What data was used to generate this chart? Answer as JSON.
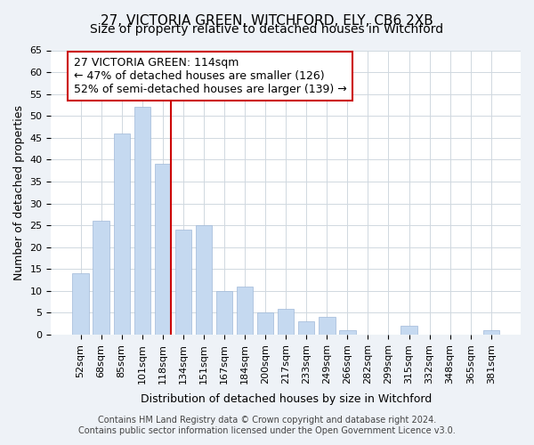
{
  "title": "27, VICTORIA GREEN, WITCHFORD, ELY, CB6 2XB",
  "subtitle": "Size of property relative to detached houses in Witchford",
  "xlabel": "Distribution of detached houses by size in Witchford",
  "ylabel": "Number of detached properties",
  "categories": [
    "52sqm",
    "68sqm",
    "85sqm",
    "101sqm",
    "118sqm",
    "134sqm",
    "151sqm",
    "167sqm",
    "184sqm",
    "200sqm",
    "217sqm",
    "233sqm",
    "249sqm",
    "266sqm",
    "282sqm",
    "299sqm",
    "315sqm",
    "332sqm",
    "348sqm",
    "365sqm",
    "381sqm"
  ],
  "values": [
    14,
    26,
    46,
    52,
    39,
    24,
    25,
    10,
    11,
    5,
    6,
    3,
    4,
    1,
    0,
    0,
    2,
    0,
    0,
    0,
    1
  ],
  "bar_color": "#c5d9f0",
  "bar_edge_color": "#a0b8d8",
  "vline_x": 4.4,
  "vline_color": "#cc0000",
  "ylim": [
    0,
    65
  ],
  "yticks": [
    0,
    5,
    10,
    15,
    20,
    25,
    30,
    35,
    40,
    45,
    50,
    55,
    60,
    65
  ],
  "annotation_box_text": "27 VICTORIA GREEN: 114sqm\n← 47% of detached houses are smaller (126)\n52% of semi-detached houses are larger (139) →",
  "background_color": "#eef2f7",
  "plot_bg_color": "#ffffff",
  "footer_line1": "Contains HM Land Registry data © Crown copyright and database right 2024.",
  "footer_line2": "Contains public sector information licensed under the Open Government Licence v3.0.",
  "title_fontsize": 11,
  "subtitle_fontsize": 10,
  "axis_label_fontsize": 9,
  "tick_fontsize": 8,
  "annotation_fontsize": 9,
  "footer_fontsize": 7
}
